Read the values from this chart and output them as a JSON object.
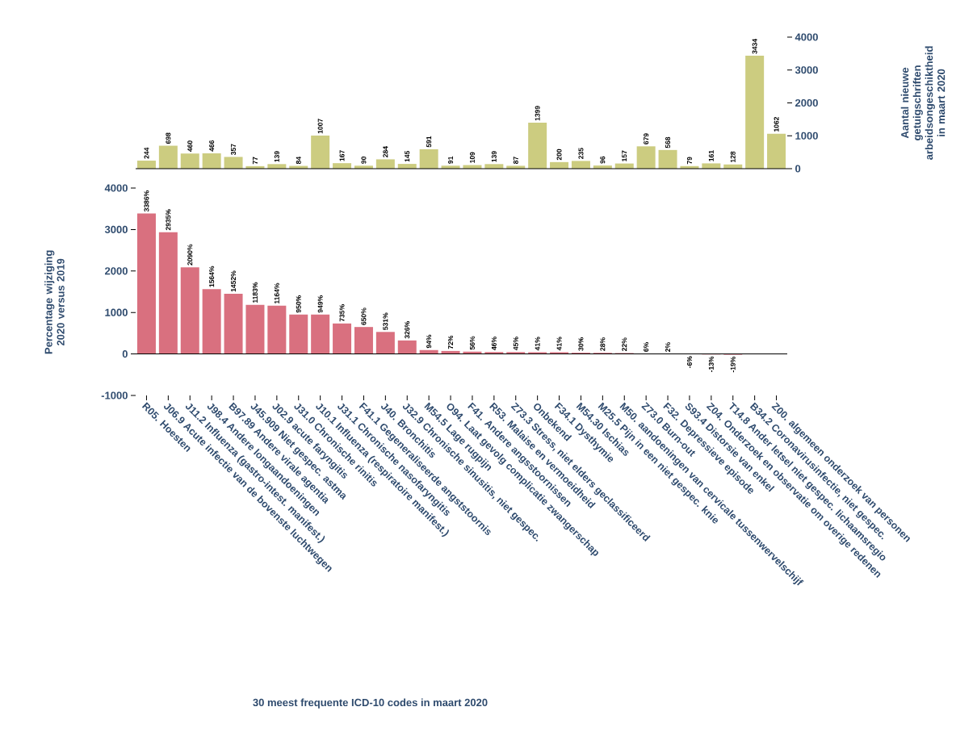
{
  "chart_data": [
    {
      "type": "bar",
      "values": [
        244,
        698,
        460,
        466,
        357,
        77,
        139,
        84,
        1007,
        167,
        90,
        284,
        145,
        591,
        91,
        109,
        139,
        87,
        1399,
        200,
        235,
        96,
        157,
        679,
        568,
        79,
        161,
        128,
        3434,
        1062
      ],
      "color": "#cccc80",
      "ylim": [
        0,
        4000
      ],
      "yticks": [
        0,
        1000,
        2000,
        3000,
        4000
      ],
      "ylabel": "Aantal nieuwe getuigschriften arbeidsongeschiktheid in maart 2020",
      "data_labels": true,
      "tick_labels": "y"
    },
    {
      "type": "bar",
      "categories": [
        "R05. Hoesten",
        "J06.9 Acute infectie van de bovenste luchtwegen",
        "J11.2 Influenza (gastro-intest. manifest.)",
        "J98.4 Andere longaandoeningen",
        "B97.89 Andere virale agentia",
        "J45.909 Niet gespec. astma",
        "J02.9 acute faryngitis",
        "J31.0 Chronische rinitis",
        "J10.1 Influenza (respiratoire manifest.)",
        "J31.1 Chronische nasofaryngitis",
        "F41.1 Gegeneraliseerde angststoornis",
        "J40. Bronchitis",
        "J32.9 Chronische sinusitis, niet gespec.",
        "M54.5 Lage rugpijn",
        "O94. Laat gevolg complicatie zwangerschap",
        "F41. Andere angsstoornissen",
        "R53. Malaise en vermoeidheid",
        "Z73.3 Stress, niet elders geclassificeerd",
        "Onbekend",
        "F34.1 Dysthymie",
        "M54.30 Ischias",
        "M25.5 Pijn in een niet gespec. knie",
        "M50. aandoeningen van cervicale tussenwervelschijf",
        "Z73.0 Burn-out",
        "F32. Depressieve episode",
        "S93.4 Distorsie van enkel",
        "Z04. Onderzoek en observatie om overige redenen",
        "T14.8 Ander letsel niet gespec. lichaamsregio",
        "B34.2 Coronavirusinfectie, niet gespec.",
        "Z00. algemeen onderzoek van personen"
      ],
      "values": [
        3386,
        2935,
        2090,
        1564,
        1452,
        1183,
        1164,
        950,
        949,
        735,
        650,
        531,
        326,
        94,
        72,
        56,
        46,
        45,
        41,
        41,
        30,
        28,
        22,
        6,
        2,
        -6,
        -13,
        -19,
        null,
        null
      ],
      "value_labels": [
        "3386%",
        "2935%",
        "2090%",
        "1564%",
        "1452%",
        "1183%",
        "1164%",
        "950%",
        "949%",
        "735%",
        "650%",
        "531%",
        "326%",
        "94%",
        "72%",
        "56%",
        "46%",
        "45%",
        "41%",
        "41%",
        "30%",
        "28%",
        "22%",
        "6%",
        "2%",
        "-6%",
        "-13%",
        "-19%",
        null,
        null
      ],
      "color": "#d9707f",
      "ylim": [
        -1000,
        4000
      ],
      "yticks": [
        -1000,
        0,
        1000,
        2000,
        3000,
        4000
      ],
      "ylabel": "Percentage wijziging 2020 versus 2019",
      "xlabel": "30 meest frequente ICD-10 codes in maart 2020",
      "ref_lines": [
        {
          "axis": "y",
          "value": 0,
          "color": "#000000"
        }
      ]
    }
  ]
}
